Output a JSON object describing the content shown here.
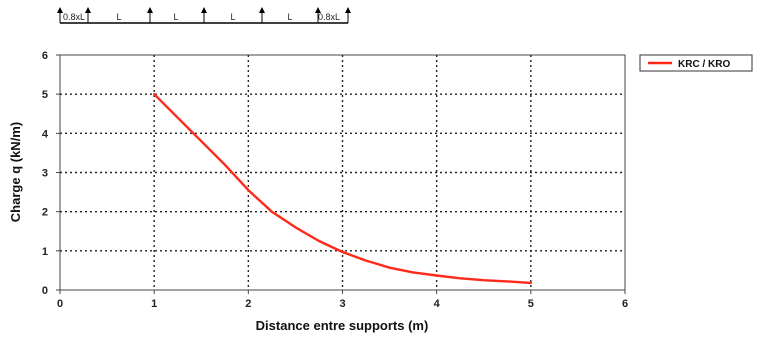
{
  "top_caption": "",
  "support_diagram": {
    "labels": [
      "0.8xL",
      "L",
      "L",
      "L",
      "L",
      "0.8xL"
    ]
  },
  "chart_data": {
    "type": "line",
    "title": "",
    "xlabel": "Distance entre supports (m)",
    "ylabel": "Charge q (kN/m)",
    "xlim": [
      0,
      6
    ],
    "ylim": [
      0,
      6
    ],
    "x_ticks": [
      0,
      1,
      2,
      3,
      4,
      5,
      6
    ],
    "y_ticks": [
      0,
      1,
      2,
      3,
      4,
      5,
      6
    ],
    "grid": true,
    "legend_position": "top-right",
    "series": [
      {
        "name": "KRC / KRO",
        "color": "#ff2a1a",
        "x": [
          1,
          1.25,
          1.5,
          1.75,
          2,
          2.25,
          2.5,
          2.75,
          3,
          3.25,
          3.5,
          3.75,
          4,
          4.25,
          4.5,
          4.75,
          5
        ],
        "y": [
          5.0,
          4.4,
          3.8,
          3.2,
          2.55,
          2.0,
          1.6,
          1.25,
          0.97,
          0.75,
          0.57,
          0.45,
          0.37,
          0.3,
          0.25,
          0.22,
          0.18
        ]
      }
    ]
  }
}
